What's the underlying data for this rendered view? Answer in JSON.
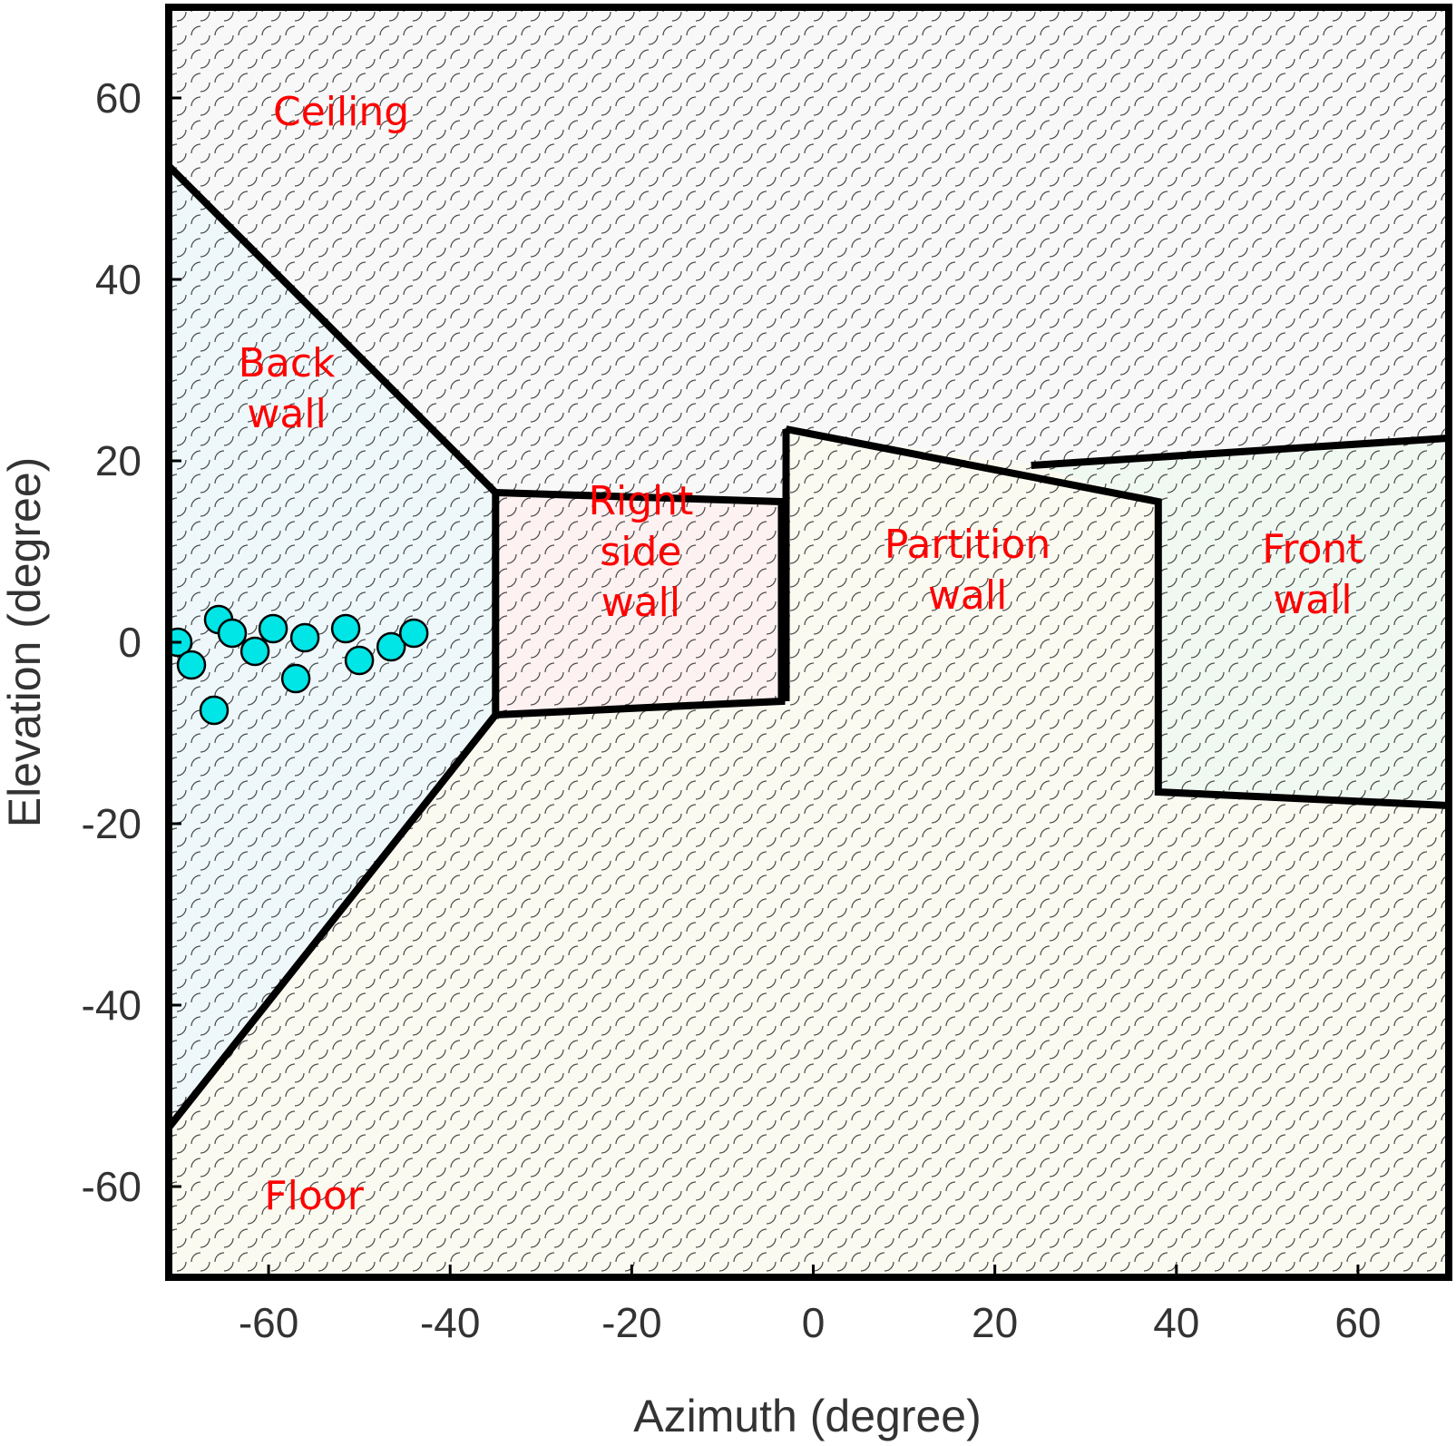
{
  "chart_data": {
    "type": "scatter",
    "xlabel": "Azimuth (degree)",
    "ylabel": "Elevation (degree)",
    "xlim": [
      -71,
      70
    ],
    "ylim": [
      -70,
      70
    ],
    "xticks": [
      -60,
      -40,
      -20,
      0,
      20,
      40,
      60
    ],
    "yticks": [
      -60,
      -40,
      -20,
      0,
      20,
      40,
      60
    ],
    "grid": false,
    "regions": [
      {
        "name": "Ceiling",
        "color": "#f8f8f8",
        "label_lines": [
          "Ceiling"
        ],
        "label_at": [
          -52,
          58.5
        ]
      },
      {
        "name": "Back wall",
        "color": "#eef7fa",
        "label_lines": [
          "Back",
          "wall"
        ],
        "label_at": [
          -58,
          28
        ]
      },
      {
        "name": "Right side wall",
        "color": "#fdf1f1",
        "label_lines": [
          "Right",
          "side",
          "wall"
        ],
        "label_at": [
          -19,
          10
        ]
      },
      {
        "name": "Partition wall",
        "color": "#fbfaf1",
        "label_lines": [
          "Partition",
          "wall"
        ],
        "label_at": [
          17,
          8
        ]
      },
      {
        "name": "Front wall",
        "color": "#f0f8f2",
        "label_lines": [
          "Front",
          "wall"
        ],
        "label_at": [
          55,
          7.5
        ]
      },
      {
        "name": "Floor",
        "color": "#fbfaf1",
        "label_lines": [
          "Floor"
        ],
        "label_at": [
          -55,
          -61
        ]
      }
    ],
    "boundaries": [
      [
        [
          -71,
          52.5
        ],
        [
          -35,
          16.5
        ],
        [
          -35,
          -8
        ],
        [
          -71,
          -53.5
        ]
      ],
      [
        [
          -35,
          16.5
        ],
        [
          -3.5,
          15.5
        ],
        [
          -3.5,
          -6.5
        ],
        [
          -35,
          -8
        ]
      ],
      [
        [
          -3,
          23.5
        ],
        [
          38,
          15.5
        ],
        [
          38,
          -16.5
        ],
        [
          70,
          -18
        ]
      ],
      [
        [
          -3,
          23.5
        ],
        [
          -3,
          -6.5
        ]
      ],
      [
        [
          24,
          19.5
        ],
        [
          70,
          22.5
        ]
      ]
    ],
    "region_polygons": {
      "Back wall": [
        [
          -71,
          52.5
        ],
        [
          -35,
          16.5
        ],
        [
          -35,
          -8
        ],
        [
          -71,
          -53.5
        ]
      ],
      "Right side wall": [
        [
          -35,
          16.5
        ],
        [
          -3.5,
          15.5
        ],
        [
          -3.5,
          -6.5
        ],
        [
          -35,
          -8
        ]
      ],
      "Front wall": [
        [
          24,
          19.5
        ],
        [
          70,
          22.5
        ],
        [
          70,
          -18
        ],
        [
          38,
          -16.5
        ],
        [
          38,
          15.5
        ]
      ],
      "Partition wall": [
        [
          -3,
          23.5
        ],
        [
          24,
          19.5
        ],
        [
          38,
          15.5
        ],
        [
          38,
          -16.5
        ],
        [
          70,
          -18
        ],
        [
          70,
          -70
        ],
        [
          -71,
          -70
        ],
        [
          -71,
          -53.5
        ],
        [
          -35,
          -8
        ],
        [
          -3.5,
          -6.5
        ]
      ]
    },
    "series": [
      {
        "color": "#00e5e5",
        "points": [
          {
            "x": -70,
            "y": 0
          },
          {
            "x": -68.5,
            "y": -2.5
          },
          {
            "x": -66,
            "y": -7.5
          },
          {
            "x": -65.5,
            "y": 2.5
          },
          {
            "x": -64,
            "y": 1
          },
          {
            "x": -61.5,
            "y": -1
          },
          {
            "x": -59.5,
            "y": 1.5
          },
          {
            "x": -57,
            "y": -4
          },
          {
            "x": -56,
            "y": 0.5
          },
          {
            "x": -51.5,
            "y": 1.5
          },
          {
            "x": -50,
            "y": -2
          },
          {
            "x": -46.5,
            "y": -0.5
          },
          {
            "x": -44,
            "y": 1
          }
        ]
      }
    ]
  }
}
